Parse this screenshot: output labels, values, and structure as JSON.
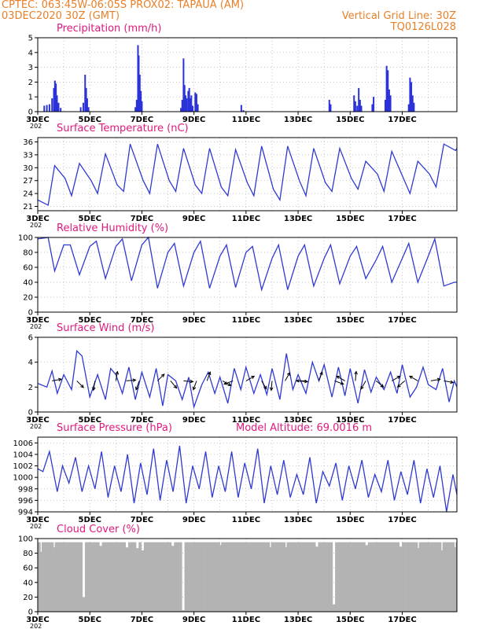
{
  "header": {
    "line1_left": "CPTEC:   063:45W-06:05S   PROX02: TAPAUA (AM)",
    "line2_left": "03DEC2020 30Z (GMT)",
    "line2_right": "Vertical Grid Line: 30Z",
    "line3_right": "TQ0126L028"
  },
  "colors": {
    "header": "#e8802a",
    "title": "#e0197e",
    "line": "#2f3ad1",
    "bar": "#2a32d8",
    "cloud": "#b3b3b3",
    "arrow": "#000000",
    "grid": "#b0b0b0"
  },
  "x_axis": {
    "labels": [
      "3DEC",
      "5DEC",
      "7DEC",
      "9DEC",
      "11DEC",
      "13DEC",
      "15DEC",
      "17DEC"
    ],
    "stub": "202"
  },
  "chart_data": [
    {
      "type": "bar",
      "title": "Precipitation (mm/h)",
      "ylim": [
        0,
        5
      ],
      "yticks": [
        "0",
        "1",
        "2",
        "3",
        "4",
        "5"
      ],
      "x_unit": "days since 3DEC",
      "points": [
        [
          0.25,
          0.4
        ],
        [
          0.35,
          0.45
        ],
        [
          0.45,
          0.5
        ],
        [
          0.55,
          0.9
        ],
        [
          0.62,
          1.6
        ],
        [
          0.66,
          2.1
        ],
        [
          0.7,
          1.9
        ],
        [
          0.74,
          1.1
        ],
        [
          0.8,
          0.6
        ],
        [
          0.88,
          0.25
        ],
        [
          1.65,
          0.3
        ],
        [
          1.75,
          0.6
        ],
        [
          1.82,
          2.5
        ],
        [
          1.86,
          1.6
        ],
        [
          1.9,
          0.9
        ],
        [
          1.95,
          0.3
        ],
        [
          3.75,
          0.3
        ],
        [
          3.8,
          0.8
        ],
        [
          3.85,
          4.5
        ],
        [
          3.88,
          3.8
        ],
        [
          3.92,
          2.5
        ],
        [
          3.96,
          1.4
        ],
        [
          4.0,
          0.7
        ],
        [
          5.5,
          0.25
        ],
        [
          5.55,
          0.8
        ],
        [
          5.6,
          3.6
        ],
        [
          5.64,
          1.8
        ],
        [
          5.68,
          1.1
        ],
        [
          5.72,
          0.9
        ],
        [
          5.78,
          1.4
        ],
        [
          5.82,
          1.6
        ],
        [
          5.86,
          0.9
        ],
        [
          5.9,
          1.1
        ],
        [
          5.95,
          0.4
        ],
        [
          6.05,
          1.3
        ],
        [
          6.1,
          1.2
        ],
        [
          6.15,
          0.5
        ],
        [
          7.82,
          0.45
        ],
        [
          7.9,
          0.1
        ],
        [
          11.2,
          0.8
        ],
        [
          11.25,
          0.5
        ],
        [
          12.15,
          1.1
        ],
        [
          12.2,
          0.7
        ],
        [
          12.27,
          0.4
        ],
        [
          12.33,
          1.6
        ],
        [
          12.38,
          0.8
        ],
        [
          12.43,
          0.4
        ],
        [
          12.85,
          0.5
        ],
        [
          12.9,
          1.0
        ],
        [
          13.35,
          0.8
        ],
        [
          13.4,
          3.1
        ],
        [
          13.45,
          2.8
        ],
        [
          13.5,
          1.5
        ],
        [
          13.55,
          1.1
        ],
        [
          14.25,
          0.5
        ],
        [
          14.3,
          2.3
        ],
        [
          14.35,
          2.0
        ],
        [
          14.4,
          1.1
        ],
        [
          14.45,
          0.6
        ]
      ]
    },
    {
      "type": "line",
      "title": "Surface Temperature (nC)",
      "ylim": [
        20,
        37
      ],
      "yticks": [
        "21",
        "24",
        "27",
        "30",
        "33",
        "36"
      ],
      "x_unit": "days since 3DEC",
      "x": [
        0,
        0.4,
        0.65,
        1.05,
        1.3,
        1.6,
        2.05,
        2.3,
        2.6,
        3.05,
        3.3,
        3.55,
        4.05,
        4.3,
        4.6,
        5.05,
        5.3,
        5.6,
        6.05,
        6.3,
        6.6,
        7.05,
        7.3,
        7.6,
        8.05,
        8.3,
        8.6,
        9.05,
        9.3,
        9.6,
        10.05,
        10.3,
        10.6,
        11.05,
        11.3,
        11.6,
        12.05,
        12.3,
        12.6,
        13.05,
        13.3,
        13.6,
        14.05,
        14.3,
        14.6,
        15.05,
        15.3,
        15.6,
        16.05,
        16.1
      ],
      "y": [
        22.5,
        21.3,
        30.5,
        27.5,
        23.5,
        31.0,
        27.0,
        24.0,
        33.2,
        26.0,
        24.5,
        35.5,
        27.0,
        24.0,
        35.5,
        27.0,
        24.5,
        34.5,
        26.0,
        24.0,
        34.5,
        25.5,
        23.5,
        34.2,
        26.5,
        23.5,
        35.0,
        25.0,
        22.5,
        35.0,
        27.0,
        23.5,
        34.5,
        26.5,
        24.5,
        34.5,
        27.5,
        25.0,
        31.5,
        28.5,
        24.5,
        33.8,
        27.5,
        24.0,
        31.5,
        28.5,
        25.5,
        35.5,
        34.0,
        34.5
      ]
    },
    {
      "type": "line",
      "title": "Relative Humidity (%)",
      "ylim": [
        0,
        100
      ],
      "yticks": [
        "0",
        "20",
        "40",
        "60",
        "80",
        "100"
      ],
      "x_unit": "days since 3DEC",
      "x": [
        0,
        0.4,
        0.65,
        1.0,
        1.25,
        1.6,
        2.0,
        2.25,
        2.6,
        3.0,
        3.25,
        3.6,
        4.0,
        4.25,
        4.6,
        5.0,
        5.25,
        5.6,
        6.0,
        6.25,
        6.6,
        7.0,
        7.25,
        7.6,
        8.0,
        8.25,
        8.6,
        9.0,
        9.25,
        9.6,
        10.0,
        10.25,
        10.6,
        11.0,
        11.25,
        11.6,
        12.0,
        12.25,
        12.6,
        13.0,
        13.25,
        13.6,
        14.0,
        14.25,
        14.6,
        15.0,
        15.25,
        15.6,
        16.0,
        16.1
      ],
      "y": [
        98,
        100,
        55,
        90,
        90,
        50,
        88,
        95,
        45,
        88,
        98,
        42,
        90,
        100,
        32,
        80,
        92,
        35,
        80,
        95,
        32,
        75,
        90,
        33,
        80,
        88,
        30,
        72,
        90,
        30,
        75,
        90,
        35,
        72,
        90,
        38,
        75,
        88,
        45,
        70,
        88,
        40,
        72,
        92,
        40,
        75,
        98,
        35,
        40,
        40
      ]
    },
    {
      "type": "line",
      "title": "Surface Wind (m/s)",
      "ylim": [
        0,
        6
      ],
      "yticks": [
        "0",
        "2",
        "4",
        "6"
      ],
      "x_unit": "days since 3DEC",
      "x": [
        0,
        0.35,
        0.55,
        0.75,
        1.0,
        1.3,
        1.5,
        1.7,
        2.0,
        2.3,
        2.6,
        2.8,
        3.0,
        3.25,
        3.5,
        3.75,
        4.0,
        4.3,
        4.55,
        4.8,
        5.0,
        5.3,
        5.55,
        5.8,
        6.0,
        6.3,
        6.55,
        6.8,
        7.0,
        7.3,
        7.55,
        7.8,
        8.0,
        8.3,
        8.55,
        8.8,
        9.0,
        9.3,
        9.55,
        9.8,
        10.0,
        10.3,
        10.55,
        10.8,
        11.0,
        11.3,
        11.55,
        11.8,
        12.0,
        12.3,
        12.55,
        12.8,
        13.0,
        13.3,
        13.55,
        13.8,
        14.0,
        14.3,
        14.55,
        14.8,
        15.0,
        15.3,
        15.55,
        15.8,
        16.0,
        16.1
      ],
      "y": [
        2.3,
        2.0,
        3.3,
        1.5,
        3.0,
        1.8,
        4.9,
        4.5,
        1.2,
        3.0,
        1.0,
        3.5,
        3.0,
        1.5,
        3.6,
        1.0,
        3.2,
        1.2,
        3.5,
        0.5,
        3.0,
        2.5,
        1.0,
        2.8,
        0.4,
        2.2,
        3.2,
        1.5,
        2.8,
        0.7,
        3.5,
        1.8,
        3.6,
        1.5,
        3.0,
        1.4,
        3.5,
        1.0,
        4.7,
        1.8,
        3.0,
        1.5,
        4.0,
        2.5,
        3.8,
        1.2,
        3.6,
        1.3,
        3.5,
        0.7,
        3.4,
        1.6,
        2.8,
        1.8,
        3.2,
        1.5,
        3.8,
        1.2,
        2.0,
        3.6,
        2.2,
        1.8,
        3.5,
        0.8,
        2.5,
        2.0
      ],
      "vectors_deg": [
        [
          0.55,
          80
        ],
        [
          1.5,
          135
        ],
        [
          2.2,
          190
        ],
        [
          3.0,
          10
        ],
        [
          3.4,
          85
        ],
        [
          3.9,
          200
        ],
        [
          4.6,
          45
        ],
        [
          5.1,
          140
        ],
        [
          5.6,
          95
        ],
        [
          6.1,
          200
        ],
        [
          6.5,
          20
        ],
        [
          7.1,
          120
        ],
        [
          7.5,
          250
        ],
        [
          8.0,
          60
        ],
        [
          8.6,
          150
        ],
        [
          9.0,
          185
        ],
        [
          9.5,
          30
        ],
        [
          10.0,
          95
        ],
        [
          10.3,
          270
        ],
        [
          10.8,
          20
        ],
        [
          11.4,
          110
        ],
        [
          11.8,
          300
        ],
        [
          12.2,
          5
        ],
        [
          12.6,
          210
        ],
        [
          13.0,
          130
        ],
        [
          13.6,
          60
        ],
        [
          14.1,
          230
        ],
        [
          14.6,
          300
        ],
        [
          15.1,
          80
        ],
        [
          15.6,
          100
        ]
      ]
    },
    {
      "type": "line",
      "title": "Surface Pressure (hPa)",
      "annotation": "Model Altitude: 69.0016 m",
      "ylim": [
        994,
        1007
      ],
      "yticks": [
        "994",
        "996",
        "998",
        "1000",
        "1002",
        "1004",
        "1006"
      ],
      "x_unit": "days since 3DEC",
      "x": [
        0,
        0.2,
        0.45,
        0.75,
        0.95,
        1.2,
        1.45,
        1.7,
        1.95,
        2.2,
        2.45,
        2.7,
        2.95,
        3.2,
        3.45,
        3.7,
        3.95,
        4.2,
        4.45,
        4.7,
        4.95,
        5.2,
        5.45,
        5.7,
        5.95,
        6.2,
        6.45,
        6.7,
        6.95,
        7.2,
        7.45,
        7.7,
        7.95,
        8.2,
        8.45,
        8.7,
        8.95,
        9.2,
        9.45,
        9.7,
        9.95,
        10.2,
        10.45,
        10.7,
        10.95,
        11.2,
        11.45,
        11.7,
        11.95,
        12.2,
        12.45,
        12.7,
        12.95,
        13.2,
        13.45,
        13.7,
        13.95,
        14.2,
        14.45,
        14.7,
        14.95,
        15.2,
        15.45,
        15.7,
        15.95,
        16.1
      ],
      "y": [
        1001.5,
        1001.0,
        1004.5,
        997.5,
        1002.0,
        999.0,
        1003.5,
        997.5,
        1002.0,
        998.0,
        1004.5,
        996.5,
        1002.0,
        997.5,
        1004.0,
        995.5,
        1002.5,
        997.0,
        1005.0,
        996.0,
        1003.0,
        997.5,
        1005.5,
        995.5,
        1002.0,
        998.0,
        1004.5,
        996.5,
        1002.0,
        997.5,
        1004.5,
        996.5,
        1002.5,
        998.0,
        1005.0,
        995.5,
        1002.0,
        997.0,
        1003.0,
        996.5,
        1000.5,
        997.0,
        1003.5,
        995.5,
        1001.0,
        998.5,
        1002.5,
        996.0,
        1002.0,
        998.0,
        1003.0,
        996.5,
        1000.5,
        997.5,
        1003.0,
        996.0,
        1001.0,
        997.0,
        1003.0,
        995.5,
        1001.5,
        996.5,
        1002.0,
        994.0,
        1000.5,
        997.0
      ]
    },
    {
      "type": "bar",
      "title": "Cloud Cover (%)",
      "ylim": [
        0,
        100
      ],
      "yticks": [
        "0",
        "20",
        "40",
        "60",
        "80",
        "100"
      ],
      "x_unit": "days since 3DEC",
      "baseline": 95,
      "dips": [
        [
          0.1,
          82
        ],
        [
          0.6,
          88
        ],
        [
          1.75,
          20
        ],
        [
          2.4,
          90
        ],
        [
          3.4,
          88
        ],
        [
          3.8,
          87
        ],
        [
          4.0,
          84
        ],
        [
          5.15,
          90
        ],
        [
          5.55,
          2
        ],
        [
          7.0,
          91
        ],
        [
          8.9,
          88
        ],
        [
          9.5,
          88
        ],
        [
          10.7,
          89
        ],
        [
          11.35,
          10
        ],
        [
          12.6,
          91
        ],
        [
          13.9,
          89
        ],
        [
          14.6,
          87
        ],
        [
          15.5,
          84
        ],
        [
          16.0,
          88
        ]
      ]
    }
  ]
}
